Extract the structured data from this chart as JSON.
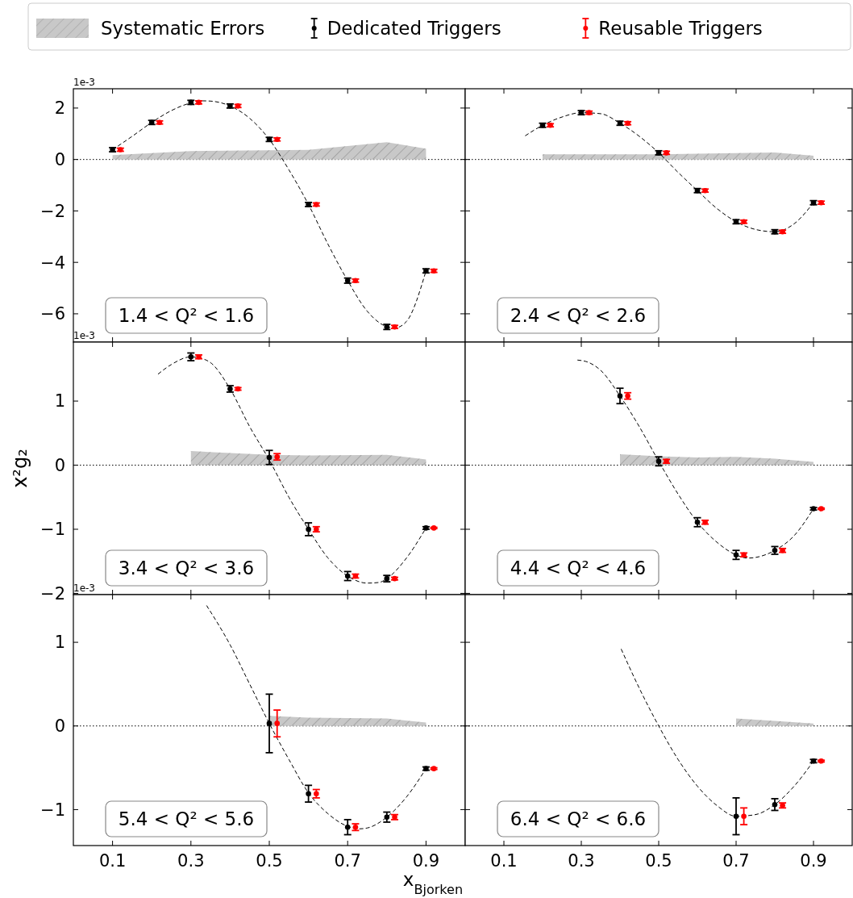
{
  "chart_data": [
    {
      "type": "scatter",
      "xlim": [
        0,
        1
      ],
      "xticks": [
        0.1,
        0.3,
        0.5,
        0.7,
        0.9
      ],
      "ylim": [
        -7.1,
        2.75
      ],
      "yticks": [
        -6,
        -4,
        -2,
        0,
        2
      ],
      "tick_labels": "y",
      "legend": "top",
      "ref_lines": [
        {
          "axis": "y",
          "value": 0,
          "line_style": "dotted",
          "color": "#000000"
        }
      ],
      "annotations": [
        "1.4 < Q² < 1.6",
        "1e-3"
      ],
      "series": [
        {
          "name": "Systematic Errors",
          "type": "area",
          "color": "#c8c8c8",
          "x": [
            0.1,
            0.3,
            0.6,
            0.8,
            0.9
          ],
          "values": [
            0.17,
            0.33,
            0.37,
            0.67,
            0.42
          ]
        },
        {
          "type": "line",
          "line_style": "dashed",
          "color": "#000000",
          "x": [
            0.1,
            0.15,
            0.2,
            0.25,
            0.3,
            0.33,
            0.35,
            0.4,
            0.45,
            0.5,
            0.55,
            0.6,
            0.65,
            0.7,
            0.75,
            0.8,
            0.82,
            0.85,
            0.9
          ],
          "values": [
            0.38,
            0.9,
            1.44,
            1.9,
            2.2,
            2.28,
            2.27,
            2.08,
            1.6,
            0.78,
            -0.4,
            -1.75,
            -3.3,
            -4.71,
            -5.9,
            -6.5,
            -6.55,
            -6.3,
            -4.33
          ]
        },
        {
          "name": "Dedicated Triggers",
          "marker": "circle",
          "color": "#000000",
          "x": [
            0.1,
            0.2,
            0.3,
            0.4,
            0.5,
            0.6,
            0.7,
            0.8,
            0.9
          ],
          "values": [
            0.38,
            1.44,
            2.22,
            2.08,
            0.78,
            -1.75,
            -4.71,
            -6.51,
            -4.33
          ],
          "errors": [
            0.08,
            0.08,
            0.08,
            0.08,
            0.08,
            0.08,
            0.1,
            0.1,
            0.08
          ]
        },
        {
          "name": "Reusable Triggers",
          "marker": "circle",
          "color": "#ff0000",
          "x": [
            0.12,
            0.22,
            0.32,
            0.42,
            0.52,
            0.62,
            0.72,
            0.82,
            0.92
          ],
          "values": [
            0.38,
            1.44,
            2.22,
            2.08,
            0.78,
            -1.75,
            -4.71,
            -6.51,
            -4.33
          ],
          "errors": [
            0.06,
            0.06,
            0.06,
            0.06,
            0.06,
            0.06,
            0.06,
            0.06,
            0.06
          ]
        }
      ]
    },
    {
      "type": "scatter",
      "xlim": [
        0,
        1
      ],
      "xticks": [
        0.1,
        0.3,
        0.5,
        0.7,
        0.9
      ],
      "ylim": [
        -7.1,
        2.75
      ],
      "yticks": [
        -6,
        -4,
        -2,
        0,
        2
      ],
      "tick_labels": false,
      "ref_lines": [
        {
          "axis": "y",
          "value": 0,
          "line_style": "dotted",
          "color": "#000000"
        }
      ],
      "annotations": [
        "2.4 < Q² < 2.6"
      ],
      "series": [
        {
          "type": "area",
          "color": "#c8c8c8",
          "x": [
            0.2,
            0.5,
            0.8,
            0.9
          ],
          "values": [
            0.2,
            0.2,
            0.27,
            0.15
          ]
        },
        {
          "type": "line",
          "line_style": "dashed",
          "color": "#000000",
          "x": [
            0.155,
            0.2,
            0.25,
            0.3,
            0.35,
            0.4,
            0.45,
            0.5,
            0.55,
            0.6,
            0.65,
            0.7,
            0.75,
            0.8,
            0.85,
            0.9
          ],
          "values": [
            0.92,
            1.33,
            1.65,
            1.82,
            1.78,
            1.41,
            0.9,
            0.26,
            -0.5,
            -1.21,
            -1.9,
            -2.42,
            -2.72,
            -2.81,
            -2.5,
            -1.68
          ]
        },
        {
          "marker": "circle",
          "color": "#000000",
          "x": [
            0.2,
            0.3,
            0.4,
            0.5,
            0.6,
            0.7,
            0.8,
            0.9
          ],
          "values": [
            1.33,
            1.82,
            1.41,
            0.26,
            -1.21,
            -2.42,
            -2.81,
            -1.68
          ],
          "errors": [
            0.08,
            0.08,
            0.08,
            0.08,
            0.08,
            0.08,
            0.08,
            0.08
          ]
        },
        {
          "marker": "circle",
          "color": "#ff0000",
          "x": [
            0.22,
            0.32,
            0.42,
            0.52,
            0.62,
            0.72,
            0.82,
            0.92
          ],
          "values": [
            1.33,
            1.82,
            1.41,
            0.26,
            -1.21,
            -2.42,
            -2.81,
            -1.68
          ],
          "errors": [
            0.06,
            0.06,
            0.06,
            0.06,
            0.06,
            0.06,
            0.06,
            0.06
          ]
        }
      ]
    },
    {
      "type": "scatter",
      "xlim": [
        0,
        1
      ],
      "xticks": [
        0.1,
        0.3,
        0.5,
        0.7,
        0.9
      ],
      "ylim": [
        -2.02,
        1.92
      ],
      "yticks": [
        -2,
        -1,
        0,
        1
      ],
      "tick_labels": "y",
      "ylabel": "x²g₂",
      "ref_lines": [
        {
          "axis": "y",
          "value": 0,
          "line_style": "dotted",
          "color": "#000000"
        }
      ],
      "annotations": [
        "3.4 < Q² < 3.6",
        "1e-3"
      ],
      "series": [
        {
          "type": "area",
          "color": "#c8c8c8",
          "x": [
            0.3,
            0.5,
            0.6,
            0.8,
            0.9
          ],
          "values": [
            0.22,
            0.16,
            0.15,
            0.16,
            0.09
          ]
        },
        {
          "type": "line",
          "line_style": "dashed",
          "color": "#000000",
          "x": [
            0.216,
            0.25,
            0.3,
            0.33,
            0.35,
            0.4,
            0.45,
            0.5,
            0.55,
            0.6,
            0.65,
            0.7,
            0.75,
            0.78,
            0.8,
            0.85,
            0.9
          ],
          "values": [
            1.42,
            1.57,
            1.69,
            1.66,
            1.6,
            1.19,
            0.6,
            0.08,
            -0.5,
            -1.0,
            -1.45,
            -1.73,
            -1.84,
            -1.83,
            -1.77,
            -1.45,
            -0.98
          ]
        },
        {
          "marker": "circle",
          "color": "#000000",
          "x": [
            0.3,
            0.4,
            0.5,
            0.6,
            0.7,
            0.8,
            0.9
          ],
          "values": [
            1.69,
            1.19,
            0.12,
            -1.0,
            -1.73,
            -1.77,
            -0.98
          ],
          "errors": [
            0.06,
            0.05,
            0.11,
            0.1,
            0.07,
            0.05,
            0.02
          ]
        },
        {
          "marker": "circle",
          "color": "#ff0000",
          "x": [
            0.32,
            0.42,
            0.52,
            0.62,
            0.72,
            0.82,
            0.92
          ],
          "values": [
            1.69,
            1.19,
            0.13,
            -1.0,
            -1.73,
            -1.77,
            -0.98
          ],
          "errors": [
            0.03,
            0.02,
            0.05,
            0.04,
            0.03,
            0.02,
            0.01
          ]
        }
      ]
    },
    {
      "type": "scatter",
      "xlim": [
        0,
        1
      ],
      "xticks": [
        0.1,
        0.3,
        0.5,
        0.7,
        0.9
      ],
      "ylim": [
        -2.02,
        1.92
      ],
      "yticks": [
        -2,
        -1,
        0,
        1
      ],
      "tick_labels": false,
      "ref_lines": [
        {
          "axis": "y",
          "value": 0,
          "line_style": "dotted",
          "color": "#000000"
        }
      ],
      "annotations": [
        "4.4 < Q² < 4.6"
      ],
      "series": [
        {
          "type": "area",
          "color": "#c8c8c8",
          "x": [
            0.4,
            0.5,
            0.6,
            0.7,
            0.8,
            0.9
          ],
          "values": [
            0.17,
            0.14,
            0.12,
            0.13,
            0.1,
            0.05
          ]
        },
        {
          "type": "line",
          "line_style": "dashed",
          "color": "#000000",
          "x": [
            0.29,
            0.32,
            0.35,
            0.4,
            0.45,
            0.5,
            0.55,
            0.6,
            0.65,
            0.7,
            0.73,
            0.75,
            0.8,
            0.85,
            0.9
          ],
          "values": [
            1.64,
            1.6,
            1.48,
            1.08,
            0.6,
            0.06,
            -0.45,
            -0.89,
            -1.2,
            -1.4,
            -1.45,
            -1.44,
            -1.33,
            -1.1,
            -0.68
          ]
        },
        {
          "marker": "circle",
          "color": "#000000",
          "x": [
            0.4,
            0.5,
            0.6,
            0.7,
            0.8,
            0.9
          ],
          "values": [
            1.08,
            0.06,
            -0.89,
            -1.4,
            -1.33,
            -0.68
          ],
          "errors": [
            0.12,
            0.07,
            0.07,
            0.07,
            0.06,
            0.02
          ]
        },
        {
          "marker": "circle",
          "color": "#ff0000",
          "x": [
            0.42,
            0.52,
            0.62,
            0.72,
            0.82,
            0.92
          ],
          "values": [
            1.08,
            0.06,
            -0.89,
            -1.4,
            -1.33,
            -0.68
          ],
          "errors": [
            0.05,
            0.03,
            0.03,
            0.03,
            0.03,
            0.01
          ]
        }
      ]
    },
    {
      "type": "scatter",
      "xlim": [
        0,
        1
      ],
      "xticks": [
        0.1,
        0.3,
        0.5,
        0.7,
        0.9
      ],
      "ylim": [
        -1.43,
        1.57
      ],
      "yticks": [
        -1,
        0,
        1
      ],
      "xlabel": "x$_{Bjorken}$",
      "ref_lines": [
        {
          "axis": "y",
          "value": 0,
          "line_style": "dotted",
          "color": "#000000"
        }
      ],
      "annotations": [
        "5.4 < Q² < 5.6",
        "1e-3"
      ],
      "series": [
        {
          "type": "area",
          "color": "#c8c8c8",
          "x": [
            0.5,
            0.6,
            0.8,
            0.9
          ],
          "values": [
            0.12,
            0.1,
            0.09,
            0.04
          ]
        },
        {
          "type": "line",
          "line_style": "dashed",
          "color": "#000000",
          "x": [
            0.34,
            0.4,
            0.45,
            0.5,
            0.55,
            0.6,
            0.65,
            0.7,
            0.73,
            0.75,
            0.8,
            0.85,
            0.9
          ],
          "values": [
            1.44,
            0.97,
            0.5,
            0.03,
            -0.4,
            -0.8,
            -1.05,
            -1.2,
            -1.23,
            -1.22,
            -1.09,
            -0.85,
            -0.51
          ]
        },
        {
          "marker": "circle",
          "color": "#000000",
          "x": [
            0.5,
            0.6,
            0.7,
            0.8,
            0.9
          ],
          "values": [
            0.03,
            -0.81,
            -1.21,
            -1.09,
            -0.51
          ],
          "errors": [
            0.35,
            0.1,
            0.09,
            0.06,
            0.02
          ]
        },
        {
          "marker": "circle",
          "color": "#ff0000",
          "x": [
            0.52,
            0.62,
            0.72,
            0.82,
            0.92
          ],
          "values": [
            0.03,
            -0.81,
            -1.21,
            -1.09,
            -0.51
          ],
          "errors": [
            0.16,
            0.05,
            0.04,
            0.03,
            0.01
          ]
        }
      ]
    },
    {
      "type": "scatter",
      "xlim": [
        0,
        1
      ],
      "xticks": [
        0.1,
        0.3,
        0.5,
        0.7,
        0.9
      ],
      "ylim": [
        -1.43,
        1.57
      ],
      "yticks": [
        -1,
        0,
        1
      ],
      "tick_labels": "x",
      "ref_lines": [
        {
          "axis": "y",
          "value": 0,
          "line_style": "dotted",
          "color": "#000000"
        }
      ],
      "annotations": [
        "6.4 < Q² < 6.6"
      ],
      "series": [
        {
          "type": "area",
          "color": "#c8c8c8",
          "x": [
            0.7,
            0.8,
            0.9
          ],
          "values": [
            0.09,
            0.06,
            0.03
          ]
        },
        {
          "type": "line",
          "line_style": "dashed",
          "color": "#000000",
          "x": [
            0.403,
            0.45,
            0.5,
            0.55,
            0.6,
            0.65,
            0.7,
            0.75,
            0.8,
            0.85,
            0.9
          ],
          "values": [
            0.92,
            0.45,
            0.0,
            -0.4,
            -0.72,
            -0.95,
            -1.08,
            -1.06,
            -0.94,
            -0.72,
            -0.42
          ]
        },
        {
          "marker": "circle",
          "color": "#000000",
          "x": [
            0.7,
            0.8,
            0.9
          ],
          "values": [
            -1.08,
            -0.94,
            -0.42
          ],
          "errors": [
            0.22,
            0.07,
            0.02
          ]
        },
        {
          "marker": "circle",
          "color": "#ff0000",
          "x": [
            0.72,
            0.82,
            0.92
          ],
          "values": [
            -1.08,
            -0.95,
            -0.42
          ],
          "errors": [
            0.1,
            0.03,
            0.01
          ]
        }
      ]
    }
  ]
}
